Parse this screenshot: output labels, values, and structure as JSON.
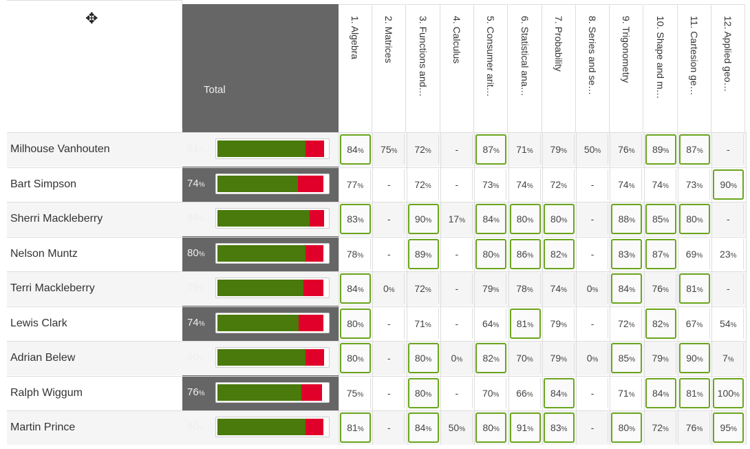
{
  "header": {
    "total_label": "Total",
    "cursor_icon": "move-cursor-icon"
  },
  "topics": [
    "1. Algebra",
    "2. Matrices",
    "3. Functions and…",
    "4. Calculus",
    "5. Consumer arit…",
    "6. Statistical ana…",
    "7. Probability",
    "8. Series and se…",
    "9. Trigonometry",
    "10. Shape and m…",
    "11. Cartesion ge…",
    "12. Applied geo…"
  ],
  "colors": {
    "correct": "#4a7a0b",
    "incorrect": "#e0002a",
    "highlight": "#6aa51d",
    "total_bg": "#666666"
  },
  "students": [
    {
      "name": "Milhouse Vanhouten",
      "total": "81",
      "correct": 80,
      "incorrect": 17,
      "scores": [
        "84",
        "75",
        "72",
        "-",
        "87",
        "71",
        "79",
        "50",
        "76",
        "89",
        "87",
        "-"
      ],
      "hi": [
        0,
        4,
        9,
        10
      ]
    },
    {
      "name": "Bart Simpson",
      "total": "74",
      "correct": 73,
      "incorrect": 23,
      "scores": [
        "77",
        "-",
        "72",
        "-",
        "73",
        "74",
        "72",
        "-",
        "74",
        "74",
        "73",
        "90"
      ],
      "hi": [
        11
      ]
    },
    {
      "name": "Sherri Mackleberry",
      "total": "84",
      "correct": 84,
      "incorrect": 13,
      "scores": [
        "83",
        "-",
        "90",
        "17",
        "84",
        "80",
        "80",
        "-",
        "88",
        "85",
        "80",
        "-"
      ],
      "hi": [
        0,
        2,
        4,
        5,
        6,
        8,
        9,
        10
      ]
    },
    {
      "name": "Nelson Muntz",
      "total": "80",
      "correct": 80,
      "incorrect": 16,
      "scores": [
        "78",
        "-",
        "89",
        "-",
        "80",
        "86",
        "82",
        "-",
        "83",
        "87",
        "69",
        "23"
      ],
      "hi": [
        2,
        4,
        5,
        6,
        8,
        9
      ]
    },
    {
      "name": "Terri Mackleberry",
      "total": "79",
      "correct": 78,
      "incorrect": 18,
      "scores": [
        "84",
        "0",
        "72",
        "-",
        "79",
        "78",
        "74",
        "0",
        "84",
        "76",
        "81",
        "-"
      ],
      "hi": [
        0,
        8,
        10
      ]
    },
    {
      "name": "Lewis Clark",
      "total": "74",
      "correct": 74,
      "incorrect": 22,
      "scores": [
        "80",
        "-",
        "71",
        "-",
        "64",
        "81",
        "79",
        "-",
        "72",
        "82",
        "67",
        "54"
      ],
      "hi": [
        0,
        5,
        9
      ]
    },
    {
      "name": "Adrian Belew",
      "total": "80",
      "correct": 80,
      "incorrect": 17,
      "scores": [
        "80",
        "-",
        "80",
        "0",
        "82",
        "70",
        "79",
        "0",
        "85",
        "79",
        "90",
        "7"
      ],
      "hi": [
        0,
        2,
        4,
        8,
        10
      ]
    },
    {
      "name": "Ralph Wiggum",
      "total": "76",
      "correct": 76,
      "incorrect": 19,
      "scores": [
        "75",
        "-",
        "80",
        "-",
        "70",
        "66",
        "84",
        "-",
        "71",
        "84",
        "81",
        "100"
      ],
      "hi": [
        2,
        6,
        9,
        10,
        11
      ]
    },
    {
      "name": "Martin Prince",
      "total": "80",
      "correct": 80,
      "incorrect": 16,
      "scores": [
        "81",
        "-",
        "84",
        "50",
        "80",
        "91",
        "83",
        "-",
        "80",
        "72",
        "76",
        "95"
      ],
      "hi": [
        0,
        2,
        4,
        5,
        6,
        8,
        11
      ]
    }
  ]
}
